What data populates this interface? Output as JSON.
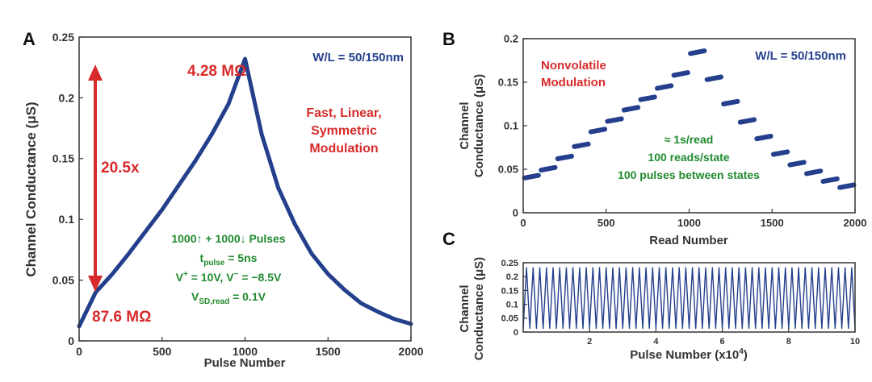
{
  "colors": {
    "data": "#243f8c",
    "red": "#d62b2b",
    "green": "#1f8a2e",
    "axis": "#333333"
  },
  "chart_data": [
    {
      "panel": "A",
      "type": "line",
      "xlabel": "Pulse Number",
      "ylabel": "Channel Conductance (μS)",
      "xlim": [
        0,
        2000
      ],
      "ylim": [
        0,
        0.25
      ],
      "xticks": [
        0,
        500,
        1000,
        1500,
        2000
      ],
      "xtick_labels": [
        "0",
        "500",
        "1000",
        "1500",
        "2000"
      ],
      "yticks": [
        0,
        0.05,
        0.1,
        0.15,
        0.2,
        0.25
      ],
      "ytick_labels": [
        "0",
        "0.05",
        "0.1",
        "0.15",
        "0.2",
        "0.25"
      ],
      "series": [
        {
          "name": "conductance",
          "x": [
            0,
            100,
            200,
            300,
            400,
            500,
            600,
            700,
            800,
            900,
            1000,
            1100,
            1200,
            1300,
            1400,
            1500,
            1600,
            1700,
            1800,
            1900,
            2000
          ],
          "y": [
            0.012,
            0.04,
            0.055,
            0.072,
            0.09,
            0.108,
            0.128,
            0.148,
            0.17,
            0.195,
            0.232,
            0.17,
            0.126,
            0.096,
            0.072,
            0.055,
            0.042,
            0.031,
            0.024,
            0.018,
            0.014
          ]
        }
      ],
      "annotations": {
        "wl": "W/L = 50/150nm",
        "r_high": "4.28 MΩ",
        "r_low": "87.6 MΩ",
        "ratio": "20.5x",
        "desc1": "Fast, Linear,",
        "desc2": "Symmetric",
        "desc3": "Modulation",
        "pulses_a": "1000",
        "pulses_b": " + 1000",
        "pulses_c": " Pulses",
        "tpulse_base": "t",
        "tpulse_sub": "pulse",
        "tpulse_val": " = 5ns",
        "volt_v": "V",
        "volt_plus": "+",
        "volt_mid": " = 10V, V",
        "volt_minus": "−",
        "volt_end": " = −8.5V",
        "vsd_base": "V",
        "vsd_sub": "SD,read",
        "vsd_val": " = 0.1V"
      }
    },
    {
      "panel": "B",
      "type": "scatter",
      "xlabel": "Read Number",
      "ylabel_line1": "Channel",
      "ylabel_line2": "Conductance (μS)",
      "xlim": [
        0,
        2000
      ],
      "ylim": [
        0,
        0.2
      ],
      "xticks": [
        0,
        500,
        1000,
        1500,
        2000
      ],
      "xtick_labels": [
        "0",
        "500",
        "1000",
        "1500",
        "2000"
      ],
      "yticks": [
        0,
        0.05,
        0.1,
        0.15,
        0.2
      ],
      "ytick_labels": [
        "0",
        "0.05",
        "0.1",
        "0.15",
        "0.2"
      ],
      "states": {
        "reads_per_state": 100,
        "values": [
          0.04,
          0.049,
          0.062,
          0.076,
          0.093,
          0.105,
          0.118,
          0.13,
          0.143,
          0.158,
          0.183,
          0.153,
          0.125,
          0.104,
          0.085,
          0.067,
          0.055,
          0.045,
          0.036,
          0.029
        ]
      },
      "annotations": {
        "wl": "W/L = 50/150nm",
        "nv1": "Nonvolatile",
        "nv2": "Modulation",
        "rate": "≈ 1s/read",
        "reads": "100 reads/state",
        "pulses": "100 pulses between states"
      }
    },
    {
      "panel": "C",
      "type": "line",
      "xlabel": "Pulse Number (x10",
      "xlabel_exp": "4",
      "xlabel_close": ")",
      "ylabel_line1": "Channel",
      "ylabel_line2": "Conductance (μS)",
      "xlim": [
        0,
        10
      ],
      "ylim": [
        0,
        0.25
      ],
      "xticks": [
        2,
        4,
        6,
        8,
        10
      ],
      "xtick_labels": [
        "2",
        "4",
        "6",
        "8",
        "10"
      ],
      "yticks": [
        0,
        0.05,
        0.1,
        0.15,
        0.2,
        0.25
      ],
      "ytick_labels": [
        "0",
        "0.05",
        "0.1",
        "0.15",
        "0.2",
        "0.25"
      ],
      "cycles": 50,
      "min": 0.013,
      "max": 0.232
    }
  ]
}
